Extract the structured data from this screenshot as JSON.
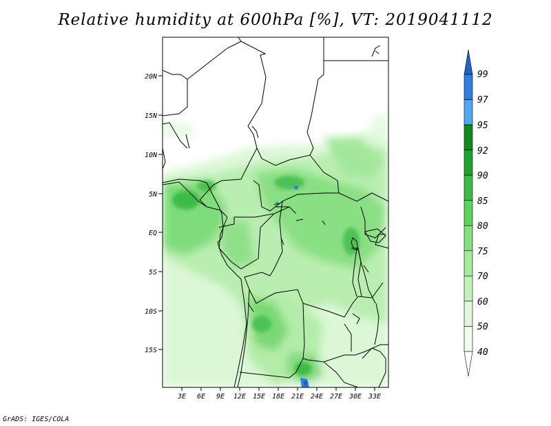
{
  "title": "Relative humidity at 600hPa [%], VT: 2019041112",
  "credit": "GrADS: IGES/COLA",
  "map": {
    "lat_labels": [
      "20N",
      "15N",
      "10N",
      "5N",
      "EQ",
      "5S",
      "10S",
      "15S"
    ],
    "lon_labels": [
      "3E",
      "6E",
      "9E",
      "12E",
      "15E",
      "18E",
      "21E",
      "24E",
      "27E",
      "30E",
      "33E"
    ]
  },
  "colorbar": {
    "labels": [
      "99",
      "97",
      "95",
      "92",
      "90",
      "85",
      "80",
      "75",
      "70",
      "60",
      "50",
      "40"
    ],
    "colors": [
      "#1f62c8",
      "#2f80e0",
      "#50a6f0",
      "#118b1f",
      "#1fa32e",
      "#3dbb46",
      "#5ed35e",
      "#84e080",
      "#a6ea9e",
      "#c4f2bc",
      "#ddf8d8",
      "#f0fcec",
      "#ffffff"
    ]
  }
}
